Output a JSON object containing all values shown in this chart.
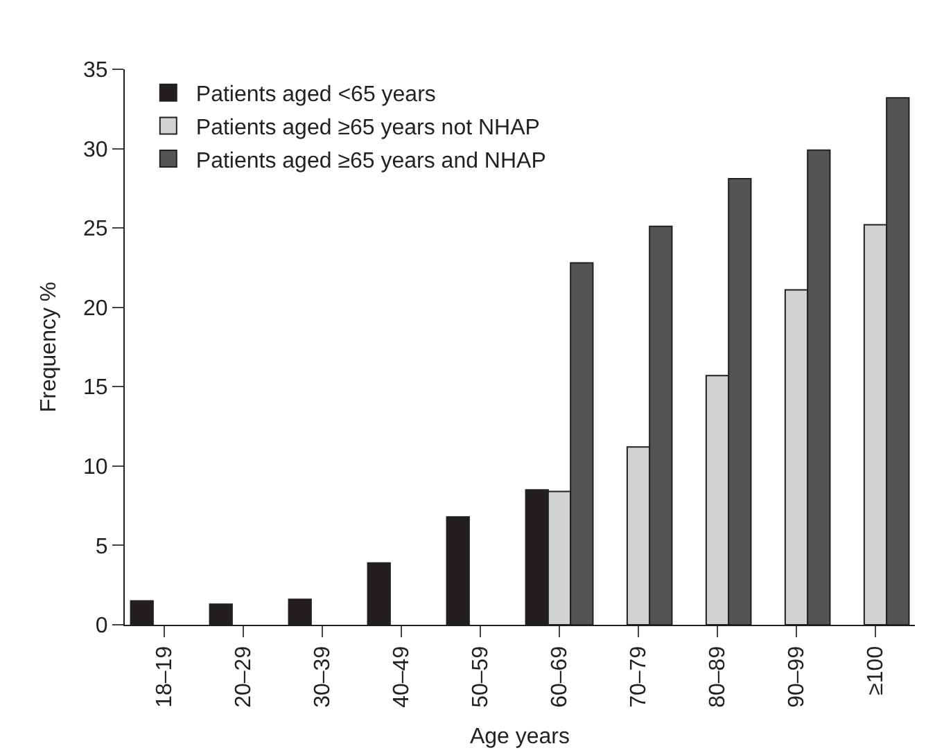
{
  "chart_data": {
    "type": "bar",
    "xlabel": "Age years",
    "ylabel": "Frequency %",
    "categories": [
      "18–19",
      "20–29",
      "30–39",
      "40–49",
      "50–59",
      "60–69",
      "70–79",
      "80–89",
      "90–99",
      "≥100"
    ],
    "series": [
      {
        "name": "Patients aged <65 years",
        "color": "#231f20",
        "values": [
          1.5,
          1.3,
          1.6,
          3.9,
          6.8,
          8.5,
          null,
          null,
          null,
          null
        ]
      },
      {
        "name": "Patients aged ≥65 years not NHAP",
        "color": "#d1d2d4",
        "values": [
          null,
          null,
          null,
          null,
          null,
          8.4,
          11.2,
          15.7,
          21.1,
          25.2
        ]
      },
      {
        "name": "Patients aged ≥65 years and NHAP",
        "color": "#545456",
        "values": [
          null,
          null,
          null,
          null,
          null,
          22.8,
          25.1,
          28.1,
          29.9,
          33.2
        ]
      }
    ],
    "ylim": [
      0,
      35
    ],
    "yticks": [
      0,
      5,
      10,
      15,
      20,
      25,
      30,
      35
    ],
    "grid": false,
    "legend": "top left"
  }
}
